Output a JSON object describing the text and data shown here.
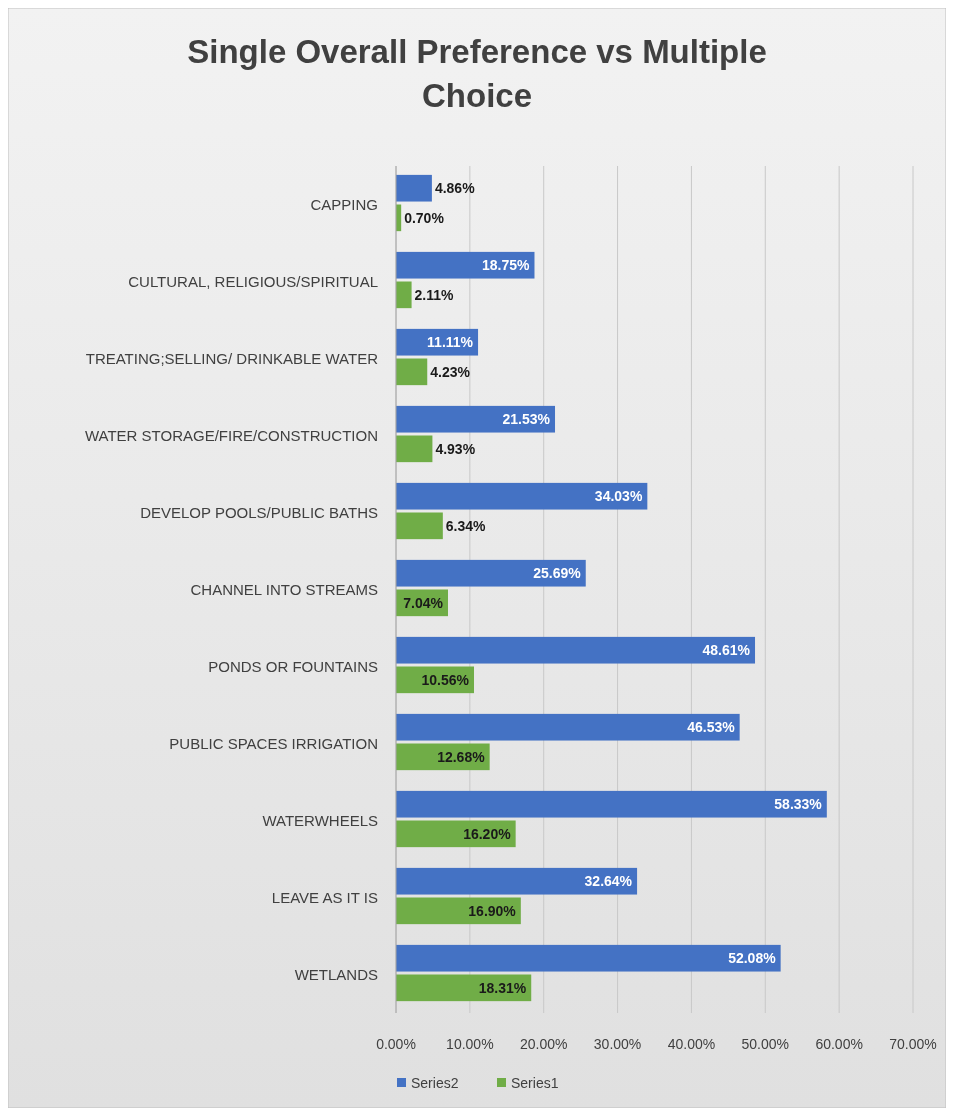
{
  "chart_data": {
    "type": "bar",
    "orientation": "horizontal",
    "title": "Single Overall Preference vs Multiple Choice",
    "categories": [
      "CAPPING",
      "CULTURAL, RELIGIOUS/SPIRITUAL",
      "TREATING;SELLING/ DRINKABLE WATER",
      "WATER STORAGE/FIRE/CONSTRUCTION",
      "DEVELOP POOLS/PUBLIC BATHS",
      "CHANNEL INTO STREAMS",
      "PONDS OR FOUNTAINS",
      "PUBLIC SPACES IRRIGATION",
      "WATERWHEELS",
      "LEAVE AS IT IS",
      "WETLANDS"
    ],
    "series": [
      {
        "name": "Series2",
        "color": "#4472c4",
        "values": [
          4.86,
          18.75,
          11.11,
          21.53,
          34.03,
          25.69,
          48.61,
          46.53,
          58.33,
          32.64,
          52.08
        ],
        "value_labels": [
          "4.86%",
          "18.75%",
          "11.11%",
          "21.53%",
          "34.03%",
          "25.69%",
          "48.61%",
          "46.53%",
          "58.33%",
          "32.64%",
          "52.08%"
        ]
      },
      {
        "name": "Series1",
        "color": "#70ad47",
        "values": [
          0.7,
          2.11,
          4.23,
          4.93,
          6.34,
          7.04,
          10.56,
          12.68,
          16.2,
          16.9,
          18.31
        ],
        "value_labels": [
          "0.70%",
          "2.11%",
          "4.23%",
          "4.93%",
          "6.34%",
          "7.04%",
          "10.56%",
          "12.68%",
          "16.20%",
          "16.90%",
          "18.31%"
        ]
      }
    ],
    "xlim": [
      0,
      70
    ],
    "xticks": [
      {
        "value": 0,
        "label": "0.00%"
      },
      {
        "value": 10,
        "label": "10.00%"
      },
      {
        "value": 20,
        "label": "20.00%"
      },
      {
        "value": 30,
        "label": "30.00%"
      },
      {
        "value": 40,
        "label": "40.00%"
      },
      {
        "value": 50,
        "label": "50.00%"
      },
      {
        "value": 60,
        "label": "60.00%"
      },
      {
        "value": 70,
        "label": "70.00%"
      }
    ],
    "grid": "x",
    "legend": "bottom"
  }
}
